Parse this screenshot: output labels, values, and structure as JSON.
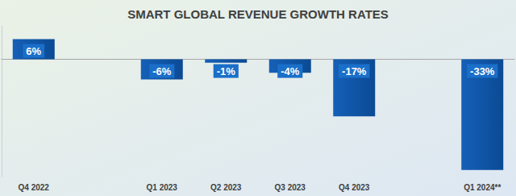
{
  "chart_data": {
    "type": "bar",
    "title": "SMART GLOBAL REVENUE GROWTH RATES",
    "categories": [
      "Q4 2022",
      null,
      "Q1 2023",
      "Q2 2023",
      "Q3 2023",
      "Q4 2023",
      null,
      "Q1 2024**"
    ],
    "values": [
      6,
      null,
      -6,
      -1,
      -4,
      -17,
      null,
      -33
    ],
    "value_labels": [
      "6%",
      null,
      "-6%",
      "-1%",
      "-4%",
      "-17%",
      null,
      "-33%"
    ],
    "color": "#1560b8",
    "ylim": [
      -35,
      10
    ],
    "grid": false,
    "data_labels": true,
    "tick_labels": "x"
  }
}
